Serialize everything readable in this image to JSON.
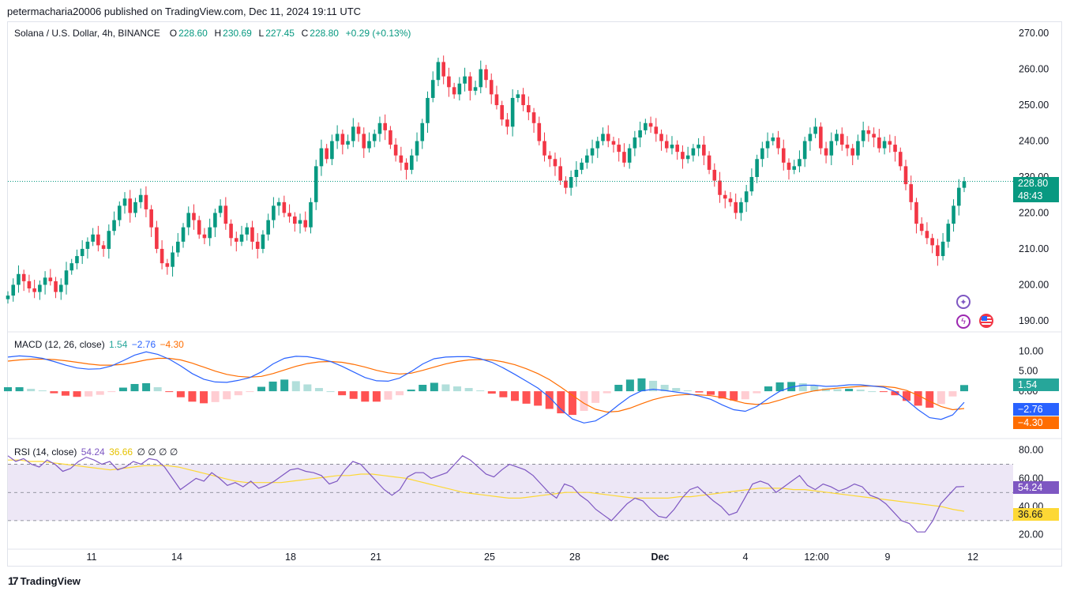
{
  "publisher": {
    "line": "petermacharia20006 published on TradingView.com, Dec 11, 2024 19:11 UTC"
  },
  "footer": {
    "brand": "TradingView",
    "logo_mark": "17"
  },
  "price_panel": {
    "symbol": "Solana / U.S. Dollar, 4h, BINANCE",
    "open_label": "O",
    "open": "228.60",
    "high_label": "H",
    "high": "230.69",
    "low_label": "L",
    "low": "227.45",
    "close_label": "C",
    "close": "228.80",
    "change": "+0.29 (+0.13%)",
    "last_price_tag": "228.80",
    "countdown_tag": "48:43"
  },
  "macd_panel": {
    "title": "MACD (12, 26, close)",
    "value_hist": "1.54",
    "value_macd": "−2.76",
    "value_signal": "−4.30"
  },
  "rsi_panel": {
    "title": "RSI (14, close)",
    "value_rsi": "54.24",
    "value_ma": "36.66",
    "empty_slots": "∅ ∅ ∅ ∅"
  },
  "colors": {
    "up": "#089981",
    "down": "#f23645",
    "macd_line": "#2962ff",
    "signal_line": "#ff6d00",
    "hist_up": "#26a69a",
    "hist_up_light": "#b2dfdb",
    "hist_down": "#ff5252",
    "hist_down_light": "#ffcdd2",
    "rsi_line": "#7e57c2",
    "rsi_ma": "#fdd835",
    "rsi_band": "#ede7f6"
  },
  "icons": [
    "compass-icon",
    "lightning-icon",
    "us-flag-icon",
    "tradingview-logo-icon"
  ],
  "chart_data": [
    {
      "type": "candlestick",
      "title": "Solana / U.S. Dollar, 4h, BINANCE",
      "ylim": [
        188,
        272
      ],
      "y_ticks": [
        "270.00",
        "260.00",
        "250.00",
        "240.00",
        "230.00",
        "220.00",
        "210.00",
        "200.00",
        "190.00"
      ],
      "x_ticks": [
        "11",
        "14",
        "18",
        "21",
        "25",
        "28",
        "Dec",
        "4",
        "12:00",
        "9",
        "12"
      ],
      "last_price": 228.8,
      "closes": [
        197,
        200,
        203,
        201,
        199,
        198,
        200,
        202,
        201,
        198,
        200,
        204,
        206,
        208,
        210,
        212,
        214,
        211,
        210,
        215,
        218,
        222,
        224,
        220,
        223,
        225,
        221,
        216,
        210,
        206,
        205,
        209,
        212,
        216,
        220,
        218,
        214,
        213,
        216,
        220,
        222,
        217,
        213,
        212,
        214,
        216,
        212,
        210,
        214,
        218,
        222,
        223,
        220,
        219,
        217,
        218,
        216,
        223,
        233,
        238,
        235,
        240,
        242,
        239,
        240,
        244,
        242,
        238,
        240,
        242,
        245,
        243,
        239,
        236,
        234,
        232,
        236,
        240,
        245,
        252,
        257,
        262,
        258,
        255,
        253,
        256,
        258,
        254,
        255,
        260,
        257,
        253,
        250,
        246,
        244,
        252,
        253,
        250,
        248,
        245,
        240,
        236,
        235,
        233,
        229,
        227,
        230,
        232,
        234,
        236,
        238,
        240,
        242,
        240,
        239,
        237,
        234,
        238,
        241,
        243,
        245,
        244,
        242,
        240,
        238,
        239,
        237,
        235,
        236,
        238,
        239,
        236,
        232,
        229,
        225,
        224,
        223,
        220,
        223,
        226,
        230,
        235,
        238,
        240,
        241,
        238,
        234,
        232,
        233,
        235,
        240,
        242,
        244,
        238,
        236,
        240,
        242,
        239,
        238,
        236,
        240,
        243,
        242,
        241,
        238,
        240,
        239,
        237,
        233,
        228,
        223,
        217,
        215,
        213,
        211,
        208,
        212,
        217,
        222,
        227,
        228.8
      ]
    },
    {
      "type": "line",
      "title": "MACD (12, 26, close)",
      "ylim": [
        -11,
        14
      ],
      "y_ticks": [
        "10.00",
        "5.00",
        "0.00"
      ],
      "series": [
        {
          "name": "MACD",
          "values": [
            8.5,
            8.8,
            8.6,
            8.2,
            7.4,
            6.5,
            5.8,
            5.5,
            5.6,
            6.3,
            7.6,
            9.0,
            9.8,
            9.2,
            8.0,
            6.3,
            4.4,
            3.0,
            2.3,
            2.2,
            2.7,
            3.4,
            4.8,
            6.8,
            8.2,
            8.7,
            8.6,
            8.1,
            7.4,
            6.2,
            4.8,
            3.4,
            2.6,
            2.5,
            3.3,
            4.9,
            6.8,
            8.1,
            8.5,
            8.6,
            8.6,
            8.1,
            7.2,
            5.8,
            4.2,
            2.5,
            0.8,
            -1.5,
            -4.5,
            -6.9,
            -7.9,
            -7.4,
            -5.7,
            -3.4,
            -1.3,
            0.1,
            0.5,
            0.2,
            -0.2,
            -0.6,
            -1.2,
            -2.0,
            -3.4,
            -4.6,
            -5.0,
            -3.8,
            -1.8,
            0.0,
            1.0,
            1.5,
            1.5,
            1.2,
            1.3,
            1.6,
            1.6,
            1.3,
            1.0,
            -0.1,
            -2.2,
            -4.6,
            -6.6,
            -7.0,
            -5.9,
            -2.76
          ]
        },
        {
          "name": "Signal",
          "values": [
            7.5,
            7.8,
            8.0,
            8.0,
            7.9,
            7.6,
            7.2,
            6.8,
            6.5,
            6.5,
            6.7,
            7.2,
            7.8,
            8.2,
            8.2,
            7.8,
            7.0,
            6.0,
            5.0,
            4.2,
            3.7,
            3.5,
            3.7,
            4.4,
            5.3,
            6.2,
            6.9,
            7.3,
            7.4,
            7.2,
            6.7,
            6.0,
            5.2,
            4.6,
            4.3,
            4.5,
            5.2,
            6.0,
            6.8,
            7.4,
            7.8,
            7.9,
            7.8,
            7.3,
            6.6,
            5.6,
            4.4,
            2.9,
            1.0,
            -1.0,
            -3.0,
            -4.5,
            -5.2,
            -5.0,
            -4.2,
            -3.1,
            -2.1,
            -1.4,
            -1.0,
            -0.8,
            -0.9,
            -1.1,
            -1.6,
            -2.3,
            -3.0,
            -3.3,
            -3.0,
            -2.2,
            -1.3,
            -0.5,
            0.1,
            0.5,
            0.8,
            1.0,
            1.2,
            1.3,
            1.2,
            0.9,
            0.2,
            -1.0,
            -2.5,
            -3.8,
            -4.6,
            -4.3
          ]
        },
        {
          "name": "Histogram",
          "values": [
            1.0,
            1.0,
            0.6,
            0.2,
            -0.5,
            -1.1,
            -1.4,
            -1.3,
            -0.9,
            -0.2,
            0.9,
            1.8,
            2.0,
            1.0,
            -0.2,
            -1.5,
            -2.6,
            -3.0,
            -2.7,
            -2.0,
            -1.0,
            -0.1,
            1.1,
            2.4,
            2.9,
            2.5,
            1.7,
            0.8,
            0.0,
            -1.0,
            -1.9,
            -2.6,
            -2.6,
            -2.1,
            -1.0,
            0.4,
            1.6,
            2.1,
            1.7,
            1.2,
            0.8,
            0.2,
            -0.6,
            -1.5,
            -2.4,
            -3.1,
            -3.6,
            -4.4,
            -5.5,
            -5.9,
            -4.9,
            -2.9,
            -0.5,
            1.6,
            2.9,
            3.2,
            2.6,
            1.6,
            0.8,
            0.2,
            -0.3,
            -0.9,
            -1.8,
            -2.3,
            -2.0,
            -0.5,
            1.2,
            2.2,
            2.3,
            2.0,
            1.4,
            0.7,
            0.5,
            0.6,
            0.4,
            0.0,
            -0.2,
            -1.0,
            -2.4,
            -3.6,
            -4.1,
            -3.2,
            -1.3,
            1.54
          ]
        }
      ],
      "last_values": {
        "histogram": 1.54,
        "macd": -2.76,
        "signal": -4.3
      }
    },
    {
      "type": "line",
      "title": "RSI (14, close)",
      "ylim": [
        12,
        86
      ],
      "y_ticks": [
        "80.00",
        "60.00",
        "40.00",
        "20.00"
      ],
      "bands": {
        "upper": 70,
        "middle": 50,
        "lower": 30
      },
      "series": [
        {
          "name": "RSI",
          "values": [
            76,
            72,
            74,
            70,
            68,
            73,
            70,
            65,
            67,
            72,
            75,
            73,
            70,
            72,
            66,
            68,
            72,
            70,
            74,
            73,
            68,
            60,
            52,
            56,
            60,
            58,
            64,
            60,
            55,
            57,
            54,
            58,
            53,
            55,
            58,
            62,
            66,
            67,
            65,
            64,
            62,
            56,
            58,
            66,
            72,
            70,
            64,
            58,
            52,
            48,
            52,
            61,
            64,
            64,
            60,
            62,
            64,
            70,
            76,
            73,
            68,
            63,
            61,
            66,
            70,
            68,
            66,
            62,
            56,
            50,
            46,
            56,
            54,
            48,
            44,
            38,
            34,
            30,
            36,
            42,
            46,
            44,
            38,
            33,
            32,
            38,
            46,
            52,
            54,
            49,
            44,
            40,
            34,
            36,
            46,
            56,
            58,
            56,
            50,
            54,
            58,
            62,
            55,
            52,
            56,
            54,
            51,
            53,
            56,
            54,
            48,
            46,
            42,
            36,
            30,
            28,
            22,
            22,
            30,
            42,
            48,
            54,
            54.24
          ]
        },
        {
          "name": "RSI-based MA",
          "values": [
            73,
            73,
            72,
            72,
            71,
            70,
            69,
            68,
            67,
            66,
            67,
            68,
            69,
            69,
            69,
            68,
            66,
            64,
            62,
            60,
            58,
            57,
            57,
            57,
            57,
            58,
            59,
            60,
            61,
            62,
            62,
            63,
            63,
            62,
            61,
            60,
            58,
            56,
            54,
            52,
            50,
            49,
            48,
            47,
            46,
            46,
            47,
            48,
            49,
            50,
            50,
            50,
            49,
            48,
            47,
            46,
            46,
            46,
            46,
            47,
            47,
            48,
            49,
            50,
            51,
            52,
            53,
            53,
            53,
            52,
            52,
            51,
            50,
            49,
            48,
            47,
            46,
            45,
            44,
            43,
            42,
            41,
            40,
            38,
            36.66
          ]
        }
      ],
      "last_values": {
        "rsi": 54.24,
        "ma": 36.66
      }
    }
  ]
}
